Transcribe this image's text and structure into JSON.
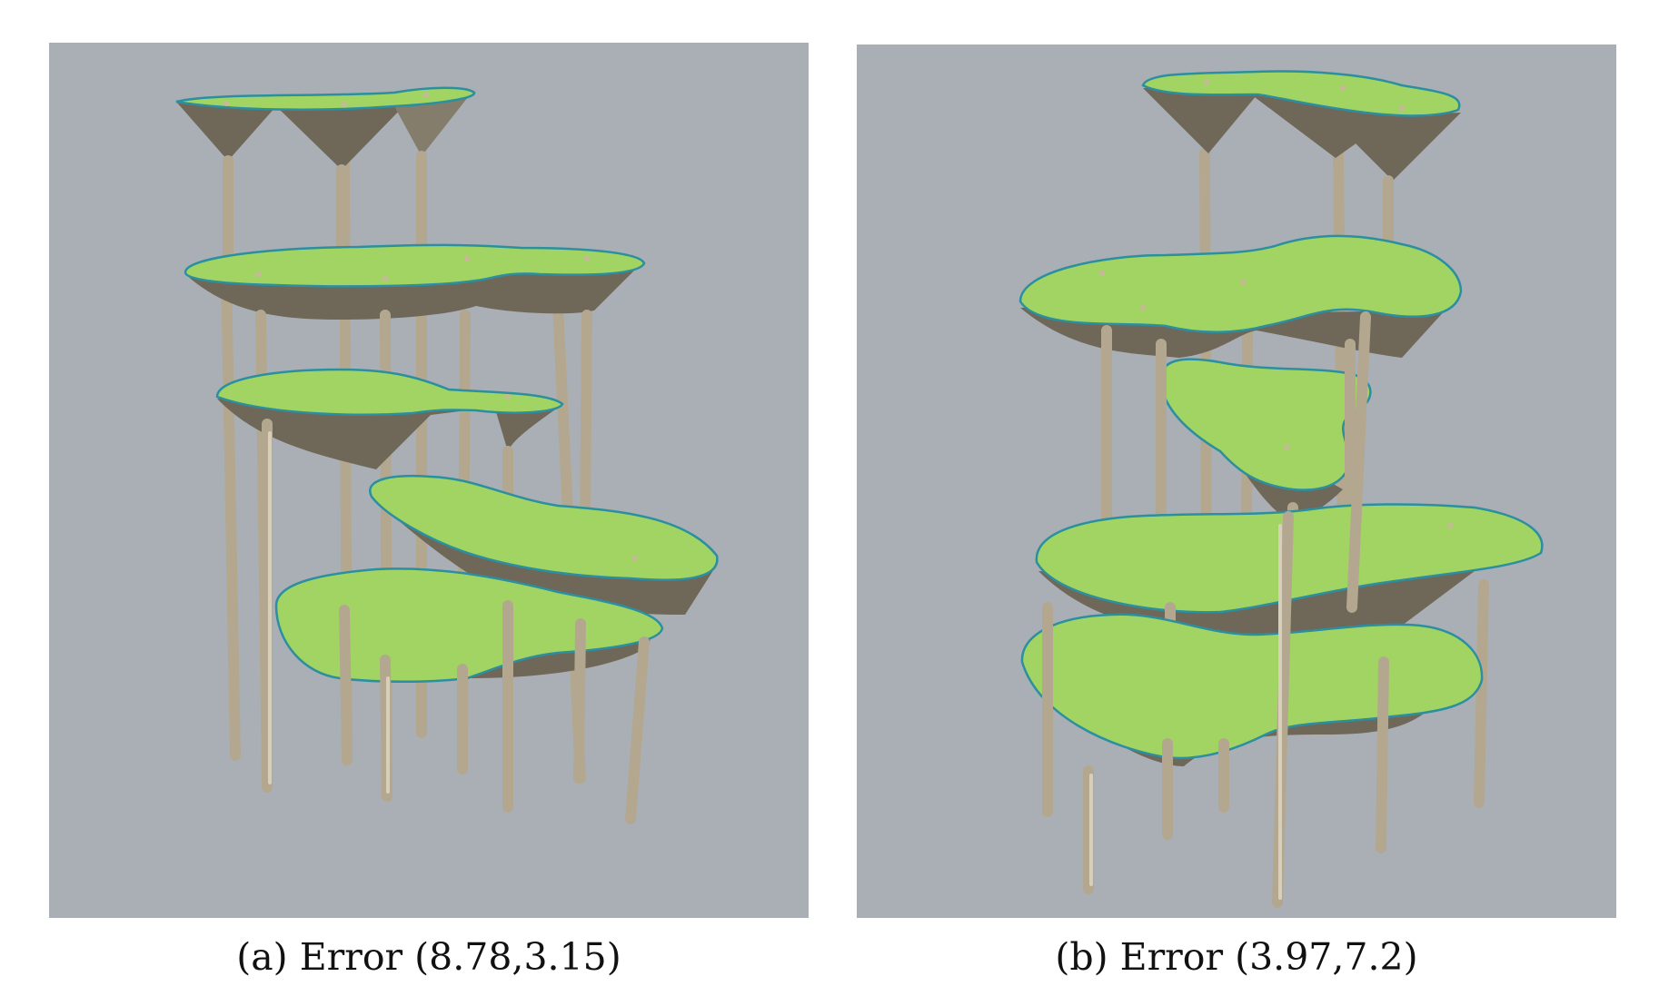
{
  "figure": {
    "background_color": "#aaafb6",
    "slab_top_color": "#a2d464",
    "slab_underside_color": "#6f6757",
    "column_color": "#b3a88f",
    "outline_color": "#2b8fa0"
  },
  "panels": [
    {
      "id": "a",
      "caption": "(a) Error (8.78,3.15)"
    },
    {
      "id": "b",
      "caption": "(b) Error (3.97,7.2)"
    }
  ]
}
